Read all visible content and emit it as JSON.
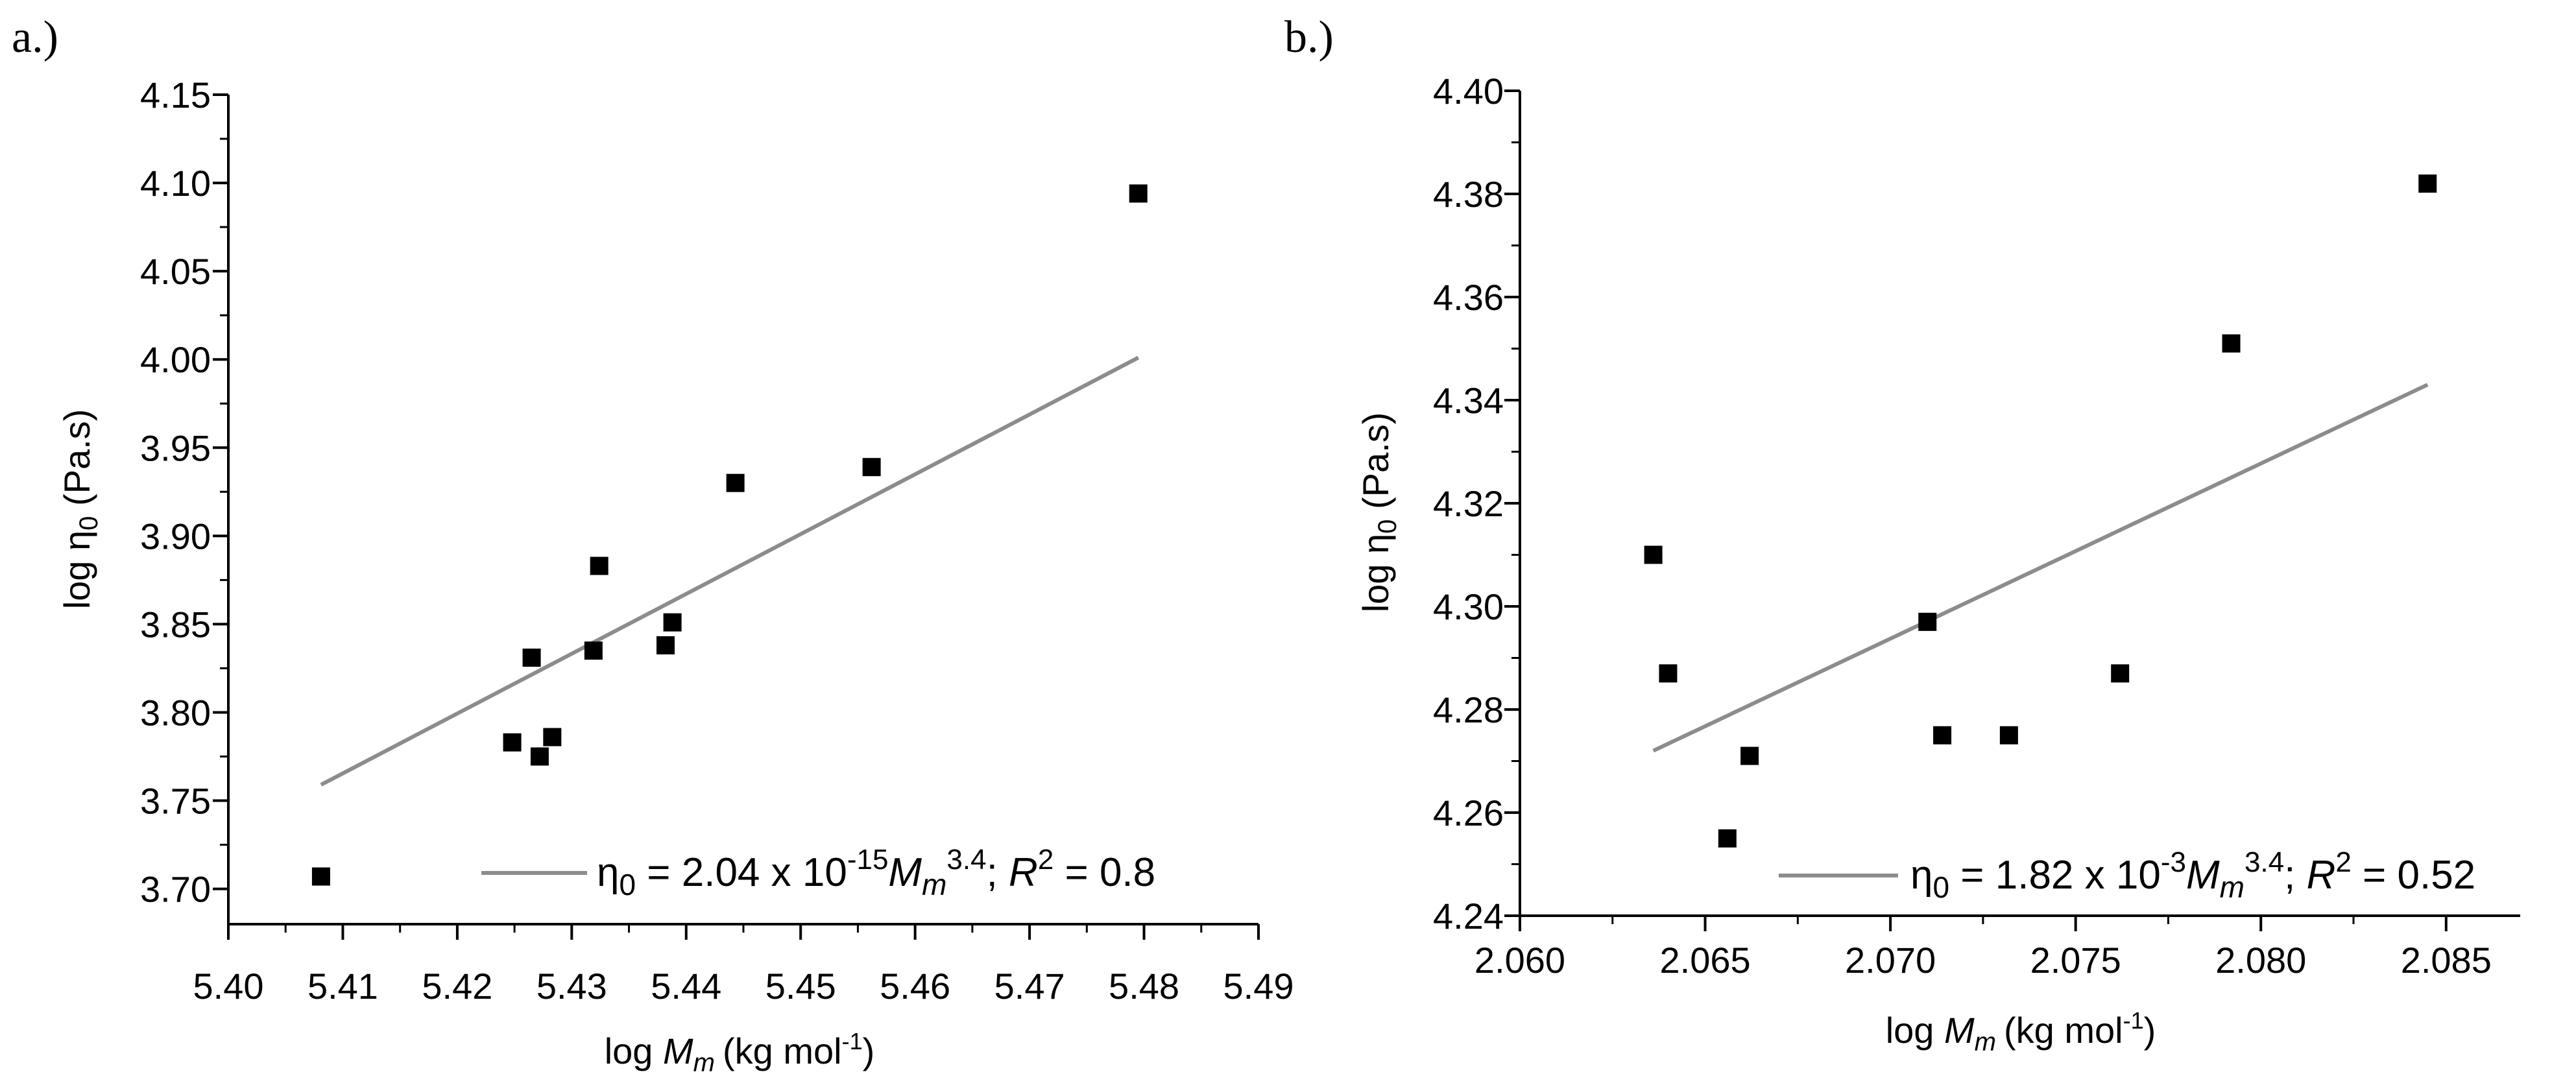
{
  "chart_data": [
    {
      "panel_label": "a.)",
      "type": "scatter",
      "xlabel": {
        "prefix": "log ",
        "var": "M",
        "sub": "m",
        "unit": "(kg mol",
        "unit_sup": "-1",
        "unit_end": ")"
      },
      "ylabel": {
        "prefix": "log η",
        "sub": "0",
        "unit": " (Pa.s)"
      },
      "xlim": [
        5.4,
        5.49
      ],
      "ylim": [
        3.68,
        4.15
      ],
      "xticks": [
        "5.40",
        "5.41",
        "5.42",
        "5.43",
        "5.44",
        "5.45",
        "5.46",
        "5.47",
        "5.48",
        "5.49"
      ],
      "yticks": [
        "3.70",
        "3.75",
        "3.80",
        "3.85",
        "3.90",
        "3.95",
        "4.00",
        "4.05",
        "4.10",
        "4.15"
      ],
      "x_tick_values": [
        5.4,
        5.41,
        5.42,
        5.43,
        5.44,
        5.45,
        5.46,
        5.47,
        5.48,
        5.49
      ],
      "y_tick_values": [
        3.7,
        3.75,
        3.8,
        3.85,
        3.9,
        3.95,
        4.0,
        4.05,
        4.1,
        4.15
      ],
      "points": [
        [
          5.4081,
          3.707
        ],
        [
          5.4248,
          3.783
        ],
        [
          5.4265,
          3.831
        ],
        [
          5.4272,
          3.775
        ],
        [
          5.4283,
          3.786
        ],
        [
          5.4319,
          3.835
        ],
        [
          5.4324,
          3.883
        ],
        [
          5.4382,
          3.838
        ],
        [
          5.4388,
          3.851
        ],
        [
          5.4443,
          3.93
        ],
        [
          5.4562,
          3.939
        ],
        [
          5.4795,
          4.094
        ]
      ],
      "fit_line": [
        [
          5.4081,
          3.759
        ],
        [
          5.4795,
          4.001
        ]
      ],
      "legend": {
        "eta": "η",
        "eta_sub": "0",
        "eq_mid": " = 2.04 x 10",
        "exp": "-15",
        "var": "M",
        "var_sub": "m",
        "var_sup": "3.4",
        "sep": "; ",
        "r": "R",
        "r_sup": "2",
        "r_val": " = 0.8"
      },
      "colors": {
        "points": "#000000",
        "fit": "#8c8c8c",
        "axes": "#000000"
      }
    },
    {
      "panel_label": "b.)",
      "type": "scatter",
      "xlabel": {
        "prefix": "log ",
        "var": "M",
        "sub": "m",
        "unit": "(kg mol",
        "unit_sup": "-1",
        "unit_end": ")"
      },
      "ylabel": {
        "prefix": "log η",
        "sub": "0",
        "unit": " (Pa.s)"
      },
      "xlim": [
        2.06,
        2.087
      ],
      "ylim": [
        4.24,
        4.4
      ],
      "xticks": [
        "2.060",
        "2.065",
        "2.070",
        "2.075",
        "2.080",
        "2.085"
      ],
      "yticks": [
        "4.24",
        "4.26",
        "4.28",
        "4.30",
        "4.32",
        "4.34",
        "4.36",
        "4.38",
        "4.40"
      ],
      "x_tick_values": [
        2.06,
        2.065,
        2.07,
        2.075,
        2.08,
        2.085
      ],
      "y_tick_values": [
        4.24,
        4.26,
        4.28,
        4.3,
        4.32,
        4.34,
        4.36,
        4.38,
        4.4
      ],
      "points": [
        [
          2.0636,
          4.31
        ],
        [
          2.064,
          4.287
        ],
        [
          2.0656,
          4.255
        ],
        [
          2.0662,
          4.271
        ],
        [
          2.071,
          4.297
        ],
        [
          2.0714,
          4.275
        ],
        [
          2.0732,
          4.275
        ],
        [
          2.0762,
          4.287
        ],
        [
          2.0792,
          4.351
        ],
        [
          2.0845,
          4.382
        ]
      ],
      "fit_line": [
        [
          2.0636,
          4.272
        ],
        [
          2.0845,
          4.343
        ]
      ],
      "legend": {
        "eta": "η",
        "eta_sub": "0",
        "eq_mid": " = 1.82 x 10",
        "exp": "-3",
        "var": "M",
        "var_sub": "m",
        "var_sup": "3.4",
        "sep": "; ",
        "r": "R",
        "r_sup": "2",
        "r_val": " = 0.52"
      },
      "colors": {
        "points": "#000000",
        "fit": "#8c8c8c",
        "axes": "#000000"
      }
    }
  ]
}
